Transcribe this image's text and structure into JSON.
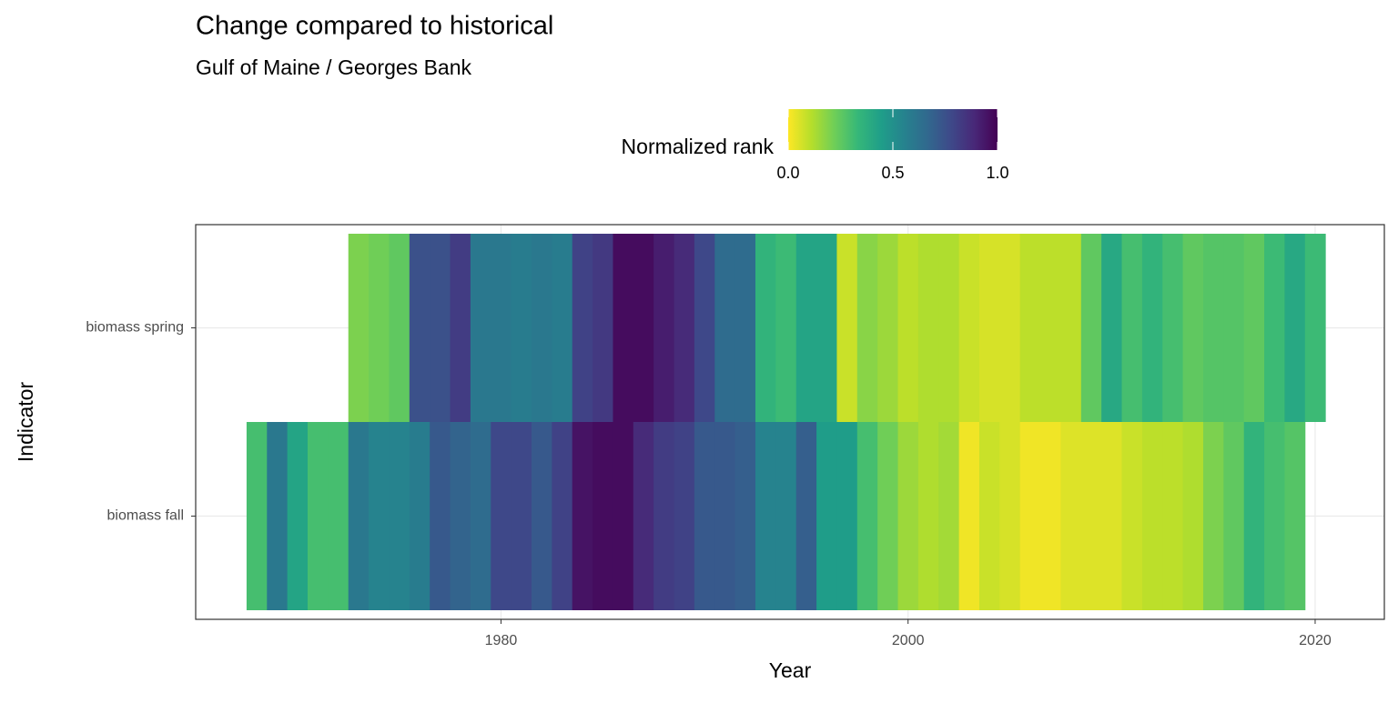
{
  "chart_data": {
    "type": "heatmap",
    "title": "Change compared to historical",
    "subtitle": "Gulf of Maine / Georges Bank",
    "xlabel": "Year",
    "ylabel": "Indicator",
    "legend_title": "Normalized rank",
    "colorscale": [
      "#fde725",
      "#b5de2b",
      "#6ece58",
      "#35b779",
      "#1f9e89",
      "#26828e",
      "#31688e",
      "#3e4989",
      "#482878",
      "#440154"
    ],
    "clim": [
      0,
      1
    ],
    "cticks": [
      {
        "value": 0,
        "label": "0.0"
      },
      {
        "value": 0.5,
        "label": "0.5"
      },
      {
        "value": 1,
        "label": "1.0"
      }
    ],
    "xlim": [
      1965,
      2023.4
    ],
    "xticks": [
      1980,
      2000,
      2020
    ],
    "grid": true,
    "series": [
      {
        "name": "biomass fall",
        "x": [
          1968,
          1969,
          1970,
          1971,
          1972,
          1973,
          1974,
          1975,
          1976,
          1977,
          1978,
          1979,
          1980,
          1981,
          1982,
          1983,
          1984,
          1985,
          1986,
          1987,
          1988,
          1989,
          1990,
          1991,
          1992,
          1993,
          1994,
          1995,
          1996,
          1997,
          1998,
          1999,
          2000,
          2001,
          2002,
          2003,
          2004,
          2005,
          2006,
          2007,
          2008,
          2009,
          2010,
          2011,
          2012,
          2013,
          2014,
          2015,
          2016,
          2017,
          2018,
          2019
        ],
        "values": [
          0.3,
          0.6,
          0.42,
          0.3,
          0.3,
          0.6,
          0.55,
          0.55,
          0.58,
          0.72,
          0.68,
          0.65,
          0.78,
          0.78,
          0.72,
          0.8,
          0.95,
          0.97,
          0.97,
          0.88,
          0.82,
          0.8,
          0.72,
          0.72,
          0.7,
          0.55,
          0.55,
          0.7,
          0.45,
          0.45,
          0.3,
          0.22,
          0.15,
          0.12,
          0.14,
          0.02,
          0.08,
          0.06,
          0.02,
          0.02,
          0.05,
          0.05,
          0.05,
          0.08,
          0.1,
          0.1,
          0.12,
          0.2,
          0.25,
          0.35,
          0.3,
          0.27
        ]
      },
      {
        "name": "biomass spring",
        "x": [
          1973,
          1974,
          1975,
          1976,
          1977,
          1978,
          1979,
          1980,
          1981,
          1982,
          1983,
          1984,
          1985,
          1986,
          1987,
          1988,
          1989,
          1990,
          1991,
          1992,
          1993,
          1994,
          1995,
          1996,
          1997,
          1998,
          1999,
          2000,
          2001,
          2002,
          2003,
          2004,
          2005,
          2006,
          2007,
          2008,
          2009,
          2010,
          2011,
          2012,
          2013,
          2014,
          2015,
          2016,
          2017,
          2018,
          2019,
          2020
        ],
        "values": [
          0.2,
          0.22,
          0.25,
          0.75,
          0.75,
          0.82,
          0.6,
          0.6,
          0.58,
          0.6,
          0.58,
          0.8,
          0.83,
          0.97,
          0.97,
          0.92,
          0.88,
          0.78,
          0.65,
          0.65,
          0.35,
          0.32,
          0.42,
          0.42,
          0.08,
          0.18,
          0.15,
          0.1,
          0.12,
          0.12,
          0.08,
          0.06,
          0.06,
          0.1,
          0.1,
          0.1,
          0.25,
          0.4,
          0.3,
          0.35,
          0.3,
          0.25,
          0.27,
          0.27,
          0.25,
          0.32,
          0.4,
          0.32
        ]
      }
    ]
  }
}
